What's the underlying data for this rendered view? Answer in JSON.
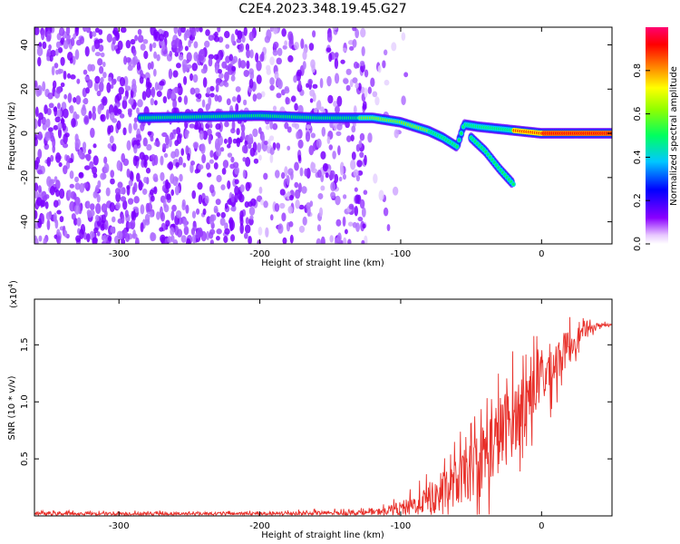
{
  "title": "C2E4.2023.348.19.45.G27",
  "chart_data": [
    {
      "type": "heatmap",
      "xlabel": "Height of straight line (km)",
      "ylabel": "Frequency (Hz)",
      "xlim": [
        -360,
        50
      ],
      "ylim": [
        -50,
        48
      ],
      "x_ticks": [
        -300,
        -200,
        -100,
        0
      ],
      "x_tick_labels": [
        "-300",
        "-200",
        "-100",
        "0"
      ],
      "y_ticks": [
        -40,
        -20,
        0,
        20,
        40
      ],
      "y_tick_labels": [
        "-40",
        "-20",
        "0",
        "20",
        "40"
      ],
      "colorbar": {
        "label": "Normalized spectral amplitude",
        "range": [
          0,
          1
        ],
        "ticks": [
          0.0,
          0.2,
          0.4,
          0.6,
          0.8
        ],
        "tick_labels": [
          "0.0",
          "0.2",
          "0.4",
          "0.6",
          "0.8"
        ],
        "colors": [
          "#ffffff",
          "#8a00ff",
          "#0000ff",
          "#00c8ff",
          "#00ff60",
          "#90ff00",
          "#ffff00",
          "#ff8000",
          "#ff0000",
          "#ff0070"
        ]
      },
      "ridges": [
        {
          "name": "",
          "x": [
            -285,
            -200,
            -160,
            -120,
            -100,
            -80,
            -70,
            -60,
            -55,
            -45,
            -30,
            -15,
            0,
            20,
            50
          ],
          "y": [
            7,
            8,
            7,
            7,
            5,
            1,
            -2,
            -6,
            4,
            3,
            2,
            1,
            0,
            0,
            0
          ]
        },
        {
          "name": "",
          "x": [
            -50,
            -40,
            -30,
            -20
          ],
          "y": [
            -2,
            -8,
            -16,
            -23
          ]
        }
      ]
    },
    {
      "type": "line",
      "xlabel": "Height of straight line (km)",
      "ylabel": "SNR (10 * v/v)",
      "y_scale_label": "(x10",
      "y_scale_exp": "4",
      "y_scale_close": ")",
      "xlim": [
        -360,
        50
      ],
      "ylim": [
        0,
        1.9
      ],
      "x_ticks": [
        -300,
        -200,
        -100,
        0
      ],
      "x_tick_labels": [
        "-300",
        "-200",
        "-100",
        "0"
      ],
      "y_ticks": [
        0.5,
        1.0,
        1.5
      ],
      "y_tick_labels": [
        "0.5",
        "1.0",
        "1.5"
      ],
      "line_color": "#e8302a",
      "series": [
        {
          "name": "",
          "x": [
            -360,
            -300,
            -200,
            -120,
            -110,
            -100,
            -90,
            -80,
            -70,
            -60,
            -50,
            -40,
            -30,
            -20,
            -10,
            0,
            10,
            20,
            30,
            40,
            50
          ],
          "y": [
            0.02,
            0.02,
            0.02,
            0.03,
            0.05,
            0.07,
            0.1,
            0.15,
            0.2,
            0.3,
            0.4,
            0.55,
            0.7,
            0.85,
            1.05,
            1.2,
            1.35,
            1.5,
            1.62,
            1.67,
            1.68
          ],
          "noise_amplitude": [
            0.02,
            0.02,
            0.02,
            0.03,
            0.05,
            0.08,
            0.12,
            0.18,
            0.22,
            0.3,
            0.35,
            0.45,
            0.5,
            0.45,
            0.4,
            0.35,
            0.3,
            0.2,
            0.08,
            0.03,
            0.02
          ]
        }
      ]
    }
  ]
}
